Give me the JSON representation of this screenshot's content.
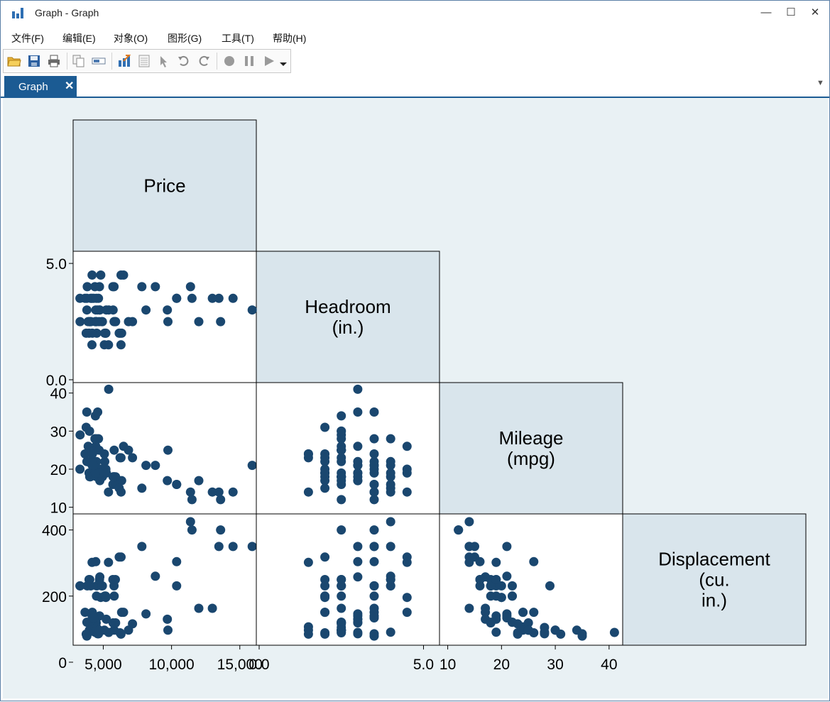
{
  "window": {
    "title": "Graph - Graph",
    "controls": {
      "minimize": "—",
      "maximize": "☐",
      "close": "✕"
    }
  },
  "menu": {
    "items": [
      "文件(F)",
      "编辑(E)",
      "对象(O)",
      "图形(G)",
      "工具(T)",
      "帮助(H)"
    ]
  },
  "toolbar": {
    "icons": [
      "open-icon",
      "save-icon",
      "print-icon",
      "copy-icon",
      "rename-icon",
      "graph-editor-icon",
      "data-editor-icon",
      "pointer-icon",
      "undo-icon",
      "redo-icon",
      "record-icon",
      "pause-icon",
      "play-icon",
      "dropdown-icon"
    ]
  },
  "tabs": [
    {
      "label": "Graph",
      "close": "✕"
    }
  ],
  "chart_data": {
    "type": "scatter",
    "subtype": "scatter-matrix-lower-half",
    "variables": [
      {
        "label_lines": [
          "Price"
        ]
      },
      {
        "label_lines": [
          "Headroom",
          "(in.)"
        ]
      },
      {
        "label_lines": [
          "Mileage",
          "(mpg)"
        ]
      },
      {
        "label_lines": [
          "Displacement",
          "(cu.",
          "in.)"
        ]
      }
    ],
    "ranges": [
      [
        3000,
        16000
      ],
      [
        0,
        5.4
      ],
      [
        9,
        42
      ],
      [
        60,
        440
      ]
    ],
    "x_axis_ticks": [
      {
        "var": 0,
        "ticks": [
          5000,
          10000,
          15000
        ],
        "labels": [
          "5,000",
          "10,000",
          "15,000"
        ]
      },
      {
        "var": 1,
        "ticks": [
          0,
          5
        ],
        "labels": [
          "0.0",
          "5.0"
        ]
      },
      {
        "var": 2,
        "ticks": [
          10,
          20,
          30,
          40
        ],
        "labels": [
          "10",
          "20",
          "30",
          "40"
        ]
      }
    ],
    "y_axis_ticks": [
      {
        "var": 1,
        "ticks": [
          0,
          5
        ],
        "labels": [
          "0.0",
          "5.0"
        ]
      },
      {
        "var": 2,
        "ticks": [
          10,
          20,
          30,
          40
        ],
        "labels": [
          "10",
          "20",
          "30",
          "40"
        ]
      },
      {
        "var": 3,
        "ticks": [
          0,
          200,
          400
        ],
        "labels": [
          "0",
          "200",
          "400"
        ]
      }
    ],
    "marker_color": "#1a476f",
    "label_cell_color": "#d9e5ec",
    "background_color": "#e9f1f4",
    "observations": [
      [
        4099,
        2.5,
        22,
        121
      ],
      [
        4749,
        3.0,
        17,
        258
      ],
      [
        3799,
        3.0,
        22,
        121
      ],
      [
        4816,
        4.5,
        20,
        196
      ],
      [
        7827,
        4.0,
        15,
        350
      ],
      [
        5788,
        4.0,
        18,
        231
      ],
      [
        4453,
        3.0,
        26,
        304
      ],
      [
        5189,
        2.0,
        20,
        196
      ],
      [
        10372,
        3.5,
        16,
        231
      ],
      [
        4082,
        3.5,
        19,
        231
      ],
      [
        11385,
        4.0,
        14,
        425
      ],
      [
        14500,
        3.5,
        14,
        350
      ],
      [
        15906,
        3.0,
        21,
        350
      ],
      [
        3299,
        2.5,
        29,
        231
      ],
      [
        5705,
        4.0,
        16,
        250
      ],
      [
        4504,
        3.5,
        22,
        200
      ],
      [
        5104,
        2.0,
        22,
        200
      ],
      [
        3667,
        3.5,
        24,
        151
      ],
      [
        3955,
        2.0,
        19,
        250
      ],
      [
        3984,
        2.5,
        30,
        97
      ],
      [
        4010,
        2.5,
        18,
        250
      ],
      [
        5886,
        2.5,
        16,
        250
      ],
      [
        6342,
        2.0,
        17,
        151
      ],
      [
        4389,
        4.0,
        28,
        91
      ],
      [
        4187,
        3.5,
        21,
        140
      ],
      [
        11497,
        3.5,
        12,
        400
      ],
      [
        13594,
        2.5,
        12,
        400
      ],
      [
        13466,
        3.5,
        14,
        350
      ],
      [
        3829,
        4.0,
        22,
        231
      ],
      [
        5379,
        1.5,
        14,
        302
      ],
      [
        6165,
        2.0,
        15,
        318
      ],
      [
        4516,
        2.0,
        18,
        231
      ],
      [
        6303,
        4.5,
        14,
        318
      ],
      [
        3291,
        3.5,
        20,
        231
      ],
      [
        8814,
        4.0,
        21,
        260
      ],
      [
        5172,
        2.0,
        19,
        200
      ],
      [
        4733,
        3.0,
        19,
        140
      ],
      [
        4890,
        2.5,
        18,
        231
      ],
      [
        4181,
        4.5,
        19,
        302
      ],
      [
        4195,
        2.0,
        24,
        151
      ],
      [
        10371,
        3.5,
        16,
        304
      ],
      [
        4647,
        3.5,
        28,
        86
      ],
      [
        4425,
        2.5,
        34,
        97
      ],
      [
        4482,
        2.5,
        25,
        119
      ],
      [
        6486,
        4.5,
        26,
        151
      ],
      [
        4060,
        2.5,
        18,
        121
      ],
      [
        5798,
        2.5,
        18,
        200
      ],
      [
        4934,
        2.5,
        18,
        231
      ],
      [
        5222,
        3.0,
        19,
        130
      ],
      [
        4723,
        4.0,
        19,
        250
      ],
      [
        4424,
        2.5,
        19,
        91
      ],
      [
        4172,
        1.5,
        24,
        107
      ],
      [
        9690,
        3.0,
        17,
        130
      ],
      [
        6295,
        1.5,
        23,
        85
      ],
      [
        9735,
        2.5,
        25,
        97
      ],
      [
        6229,
        2.0,
        23,
        89
      ],
      [
        4589,
        3.0,
        35,
        86
      ],
      [
        5079,
        1.5,
        24,
        97
      ],
      [
        8129,
        3.0,
        21,
        146
      ],
      [
        4296,
        3.5,
        21,
        134
      ],
      [
        5799,
        2.5,
        25,
        97
      ],
      [
        4499,
        2.5,
        28,
        105
      ],
      [
        3995,
        2.5,
        30,
        97
      ],
      [
        12990,
        3.5,
        14,
        163
      ],
      [
        3895,
        2.5,
        26,
        89
      ],
      [
        3798,
        3.5,
        35,
        79
      ],
      [
        5899,
        2.5,
        18,
        119
      ],
      [
        3748,
        2.0,
        31,
        85
      ],
      [
        5719,
        3.0,
        18,
        119
      ],
      [
        7140,
        2.5,
        23,
        116
      ],
      [
        5397,
        3.0,
        41,
        90
      ],
      [
        4697,
        2.5,
        25,
        97
      ],
      [
        6850,
        2.5,
        25,
        97
      ],
      [
        11995,
        2.5,
        17,
        163
      ]
    ]
  }
}
